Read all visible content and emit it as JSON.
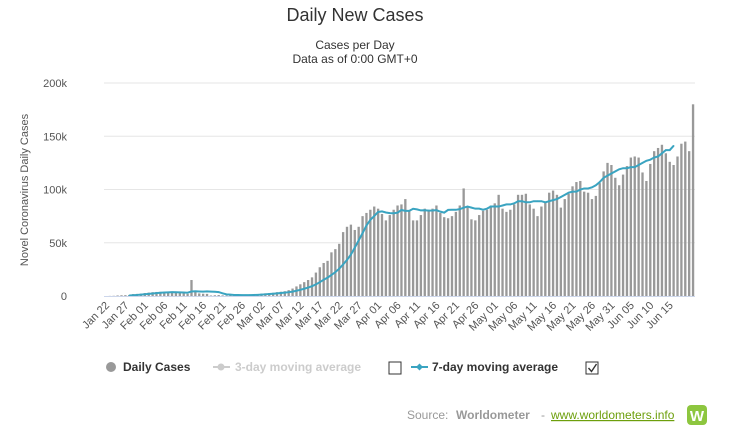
{
  "chart_data": {
    "type": "bar",
    "title": "Daily New Cases",
    "subtitle_1": "Cases per Day",
    "subtitle_2": "Data as of 0:00 GMT+0",
    "ylabel": "Novel Coronavirus Daily Cases",
    "xlabel": "",
    "ylim": [
      0,
      200000
    ],
    "y_ticks": [
      0,
      50000,
      100000,
      150000,
      200000
    ],
    "y_tick_labels": [
      "0",
      "50k",
      "100k",
      "150k",
      "200k"
    ],
    "x_tick_labels": [
      "Jan 22",
      "Jan 27",
      "Feb 01",
      "Feb 06",
      "Feb 11",
      "Feb 16",
      "Feb 21",
      "Feb 26",
      "Mar 02",
      "Mar 07",
      "Mar 12",
      "Mar 17",
      "Mar 22",
      "Mar 27",
      "Apr 01",
      "Apr 06",
      "Apr 11",
      "Apr 16",
      "Apr 21",
      "Apr 26",
      "May 01",
      "May 06",
      "May 11",
      "May 16",
      "May 21",
      "May 26",
      "May 31",
      "Jun 05",
      "Jun 10",
      "Jun 15"
    ],
    "x_tick_step_days": 5,
    "series": [
      {
        "name": "Daily Cases",
        "type": "bar",
        "color": "#999999",
        "values": [
          0,
          100,
          200,
          500,
          700,
          800,
          1000,
          1800,
          2000,
          2200,
          2800,
          3200,
          3600,
          3800,
          3900,
          3700,
          3200,
          3900,
          3500,
          2800,
          2600,
          2000,
          15000,
          4600,
          2400,
          2100,
          2000,
          500,
          700,
          900,
          600,
          400,
          500,
          600,
          800,
          900,
          1200,
          1300,
          1500,
          1800,
          2200,
          2500,
          2700,
          3000,
          3600,
          4000,
          4500,
          5500,
          7000,
          9000,
          11000,
          13000,
          15000,
          17500,
          22000,
          27000,
          31000,
          33000,
          41000,
          44000,
          49000,
          60000,
          65000,
          67000,
          62000,
          65000,
          75000,
          78000,
          81000,
          84000,
          82000,
          77000,
          71000,
          76000,
          81000,
          85000,
          86000,
          91000,
          80000,
          71000,
          71000,
          76000,
          82000,
          80000,
          82000,
          85000,
          78000,
          74000,
          73000,
          75000,
          79000,
          85000,
          101000,
          84000,
          72000,
          71000,
          76000,
          80000,
          81000,
          85000,
          87000,
          95000,
          82000,
          79000,
          81000,
          86000,
          95000,
          95000,
          96000,
          86000,
          82000,
          75000,
          84000,
          88000,
          97000,
          99000,
          95000,
          83000,
          91000,
          96000,
          103000,
          107000,
          108000,
          98000,
          97000,
          91000,
          94000,
          106000,
          117000,
          125000,
          123000,
          111000,
          104000,
          114000,
          122000,
          130000,
          131000,
          130000,
          116000,
          108000,
          124000,
          136000,
          139000,
          142000,
          134000,
          126000,
          123000,
          131000,
          143000,
          145000,
          136000,
          180000
        ]
      },
      {
        "name": "3-day moving average",
        "type": "line",
        "color": "#cccccc",
        "visible": false,
        "values": []
      },
      {
        "name": "7-day moving average",
        "type": "line",
        "color": "#3aa4c1",
        "values": [
          null,
          null,
          null,
          null,
          null,
          null,
          470,
          730,
          1000,
          1270,
          1610,
          1970,
          2370,
          2750,
          3060,
          3300,
          3440,
          3610,
          3580,
          3400,
          3260,
          3070,
          4280,
          4440,
          4230,
          4080,
          4340,
          4140,
          3950,
          3660,
          2500,
          1530,
          1290,
          1000,
          890,
          800,
          810,
          860,
          960,
          1110,
          1320,
          1590,
          1860,
          2130,
          2440,
          2810,
          3160,
          3580,
          4140,
          4900,
          5790,
          6800,
          7940,
          9240,
          10920,
          12960,
          15310,
          17290,
          19790,
          22390,
          25630,
          29590,
          33870,
          38870,
          45440,
          52210,
          59030,
          66200,
          71490,
          75070,
          78890,
          79440,
          78410,
          77860,
          77670,
          78210,
          80780,
          79930,
          79940,
          81890,
          81360,
          80360,
          80500,
          80210,
          80270,
          80620,
          79200,
          78280,
          80840,
          80980,
          80940,
          81560,
          82960,
          84000,
          83000,
          82000,
          82000,
          81000,
          82000,
          84000,
          84000,
          84000,
          85000,
          86000,
          86000,
          87000,
          89000,
          89000,
          88000,
          88000,
          89000,
          89000,
          89000,
          88000,
          89000,
          90000,
          91000,
          93000,
          95000,
          97000,
          98000,
          98000,
          100000,
          101000,
          101000,
          102000,
          104000,
          107000,
          111000,
          113000,
          115000,
          117000,
          119000,
          120000,
          120000,
          121000,
          121000,
          123000,
          125000,
          127000,
          128000,
          130000,
          131000,
          134000,
          137000,
          137000,
          141000
        ]
      }
    ]
  },
  "legend": {
    "daily_cases": "Daily Cases",
    "ma3": "3-day moving average",
    "ma7": "7-day moving average",
    "ma3_checked": false,
    "ma7_checked": true
  },
  "footer": {
    "source_label": "Source:",
    "source_name": "Worldometer",
    "separator": "-",
    "link_text": "www.worldometers.info",
    "logo_letter": "W"
  },
  "colors": {
    "bar": "#999999",
    "ma7": "#3aa4c1",
    "ma3_inactive": "#cccccc",
    "grid": "#e6e6e6",
    "link": "#6d9f0c",
    "logo_bg": "#8dc63f"
  }
}
